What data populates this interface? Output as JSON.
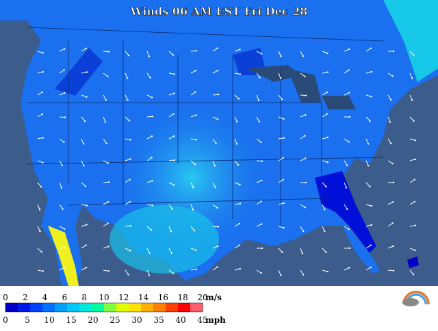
{
  "title": "Winds 06 AM EST Fri Dec 28",
  "legend": {
    "ms": {
      "ticks": [
        0,
        2,
        4,
        6,
        8,
        10,
        12,
        14,
        16,
        18,
        20
      ],
      "unit": "m/s"
    },
    "mph": {
      "ticks": [
        0,
        5,
        10,
        15,
        20,
        25,
        30,
        35,
        40,
        45
      ],
      "unit": "mph"
    },
    "colors": [
      "#0000c8",
      "#0018e8",
      "#0040ff",
      "#0070ff",
      "#00a0ff",
      "#00c8ff",
      "#00e8e0",
      "#00ffa0",
      "#80ff40",
      "#e0ff00",
      "#ffe000",
      "#ffb000",
      "#ff8000",
      "#ff4000",
      "#ff0000",
      "#ff6070"
    ]
  }
}
